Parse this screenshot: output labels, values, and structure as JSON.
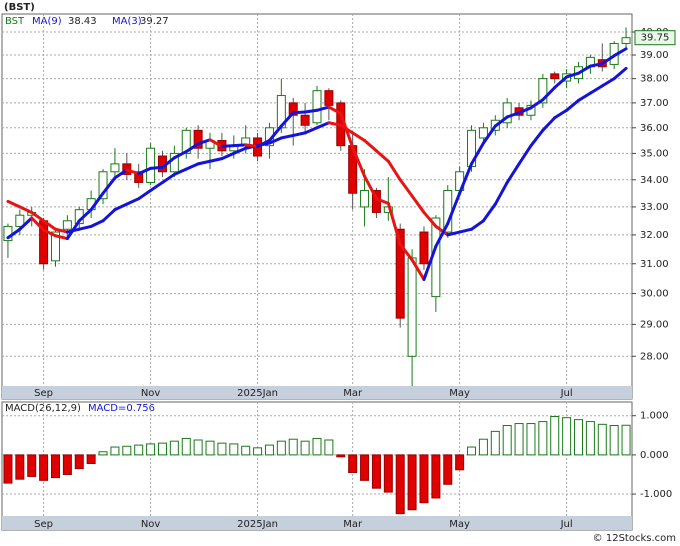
{
  "chart_data": [
    {
      "type": "candlestick",
      "title": "(BST)",
      "symbol": "BST",
      "categories": [
        null,
        null,
        null,
        null,
        null,
        null,
        null,
        null,
        null,
        null,
        null,
        null,
        null,
        null,
        null,
        null,
        null,
        null,
        null,
        null,
        null,
        null,
        null,
        null,
        null,
        null,
        null,
        null,
        null,
        null,
        null,
        null,
        null,
        null,
        null,
        null,
        null,
        null,
        null,
        null,
        null,
        null,
        null,
        null,
        null,
        null,
        null,
        null,
        null,
        null,
        null,
        null,
        null
      ],
      "open": [
        31.8,
        32.3,
        32.7,
        32.5,
        31.1,
        32.2,
        32.4,
        32.9,
        33.3,
        34.3,
        34.6,
        34.3,
        33.9,
        34.9,
        34.3,
        35.0,
        35.9,
        35.2,
        35.5,
        35.1,
        35.3,
        35.6,
        35.3,
        36.0,
        37.0,
        36.5,
        36.2,
        37.5,
        37.0,
        35.3,
        33.0,
        33.6,
        32.8,
        32.2,
        28.0,
        32.1,
        29.9,
        32.1,
        33.6,
        34.5,
        35.6,
        35.9,
        36.2,
        36.8,
        36.5,
        37.0,
        38.2,
        37.9,
        38.0,
        38.5,
        38.8,
        38.6,
        39.5
      ],
      "high": [
        32.4,
        32.9,
        33.0,
        32.6,
        32.2,
        32.7,
        33.0,
        33.6,
        34.4,
        35.2,
        35.0,
        34.6,
        35.4,
        35.1,
        35.3,
        36.0,
        36.1,
        35.8,
        35.8,
        35.7,
        36.1,
        35.8,
        36.2,
        38.0,
        37.2,
        37.0,
        37.7,
        37.6,
        37.1,
        35.8,
        34.4,
        33.7,
        34.1,
        32.4,
        31.5,
        32.3,
        32.7,
        33.8,
        34.5,
        36.1,
        36.2,
        36.5,
        37.2,
        37.0,
        37.1,
        38.2,
        38.3,
        38.4,
        38.7,
        39.0,
        39.5,
        39.6,
        40.2
      ],
      "low": [
        31.2,
        32.0,
        32.3,
        30.8,
        30.9,
        31.9,
        32.2,
        32.6,
        33.1,
        34.0,
        34.0,
        33.7,
        33.8,
        34.1,
        34.1,
        34.8,
        34.8,
        34.4,
        34.9,
        34.8,
        35.0,
        34.7,
        34.8,
        35.8,
        35.3,
        35.8,
        36.1,
        36.3,
        35.1,
        32.9,
        32.3,
        32.6,
        32.5,
        28.9,
        27.1,
        30.8,
        29.4,
        31.9,
        33.4,
        34.3,
        35.4,
        35.7,
        36.0,
        36.3,
        36.3,
        36.8,
        37.8,
        37.6,
        37.8,
        38.2,
        38.3,
        38.4,
        39.3
      ],
      "close": [
        32.3,
        32.7,
        32.8,
        31.0,
        32.1,
        32.5,
        32.9,
        33.3,
        34.3,
        34.6,
        34.2,
        33.9,
        35.2,
        34.3,
        35.0,
        35.9,
        35.2,
        35.5,
        35.1,
        35.3,
        35.6,
        34.9,
        36.0,
        37.3,
        36.5,
        36.1,
        37.5,
        36.9,
        35.3,
        33.5,
        33.6,
        32.8,
        33.0,
        29.2,
        31.2,
        31.0,
        32.6,
        33.6,
        34.3,
        35.9,
        36.0,
        36.3,
        37.0,
        36.5,
        36.9,
        38.0,
        38.0,
        38.2,
        38.5,
        38.9,
        38.5,
        39.5,
        39.75
      ],
      "up_color": "#1a7a1a",
      "down_color": "#e00000",
      "series": [
        {
          "name": "MA(9)",
          "legend_value": 38.43,
          "values": [
            33.2,
            33.0,
            32.8,
            32.5,
            32.2,
            32.1,
            32.2,
            32.3,
            32.5,
            32.9,
            33.1,
            33.3,
            33.6,
            33.9,
            34.2,
            34.4,
            34.6,
            34.7,
            34.8,
            35.0,
            35.2,
            35.3,
            35.4,
            35.6,
            35.7,
            35.8,
            36.0,
            36.2,
            36.1,
            35.8,
            35.5,
            35.1,
            34.7,
            34.0,
            33.4,
            32.8,
            32.3,
            32.0,
            32.1,
            32.2,
            32.5,
            33.1,
            33.9,
            34.6,
            35.3,
            35.9,
            36.4,
            36.7,
            37.1,
            37.4,
            37.7,
            38.0,
            38.43
          ]
        },
        {
          "name": "MA(3)",
          "legend_value": 39.27,
          "values": [
            31.9,
            32.2,
            32.6,
            32.17,
            31.97,
            31.87,
            32.5,
            32.9,
            33.5,
            34.07,
            34.37,
            34.23,
            34.43,
            34.47,
            34.83,
            35.07,
            35.37,
            35.53,
            35.27,
            35.3,
            35.33,
            35.27,
            35.5,
            36.07,
            36.6,
            36.63,
            36.7,
            36.83,
            36.57,
            35.23,
            34.13,
            33.3,
            33.13,
            31.67,
            31.13,
            30.47,
            31.6,
            32.4,
            33.5,
            34.6,
            35.4,
            36.07,
            36.43,
            36.6,
            36.8,
            37.13,
            37.63,
            38.07,
            38.23,
            38.53,
            38.63,
            38.97,
            39.27
          ]
        }
      ],
      "line_up_color": "#1414d8",
      "line_down_color": "#e81414",
      "ylim": [
        27.1,
        40.8
      ],
      "log_scale": true,
      "yticks": [
        {
          "value": 28,
          "label": "28.00"
        },
        {
          "value": 29,
          "label": "29.00"
        },
        {
          "value": 30,
          "label": "30.00"
        },
        {
          "value": 31,
          "label": "31.00"
        },
        {
          "value": 32,
          "label": "32.00"
        },
        {
          "value": 33,
          "label": "33.00"
        },
        {
          "value": 34,
          "label": "34.00"
        },
        {
          "value": 35,
          "label": "35.00"
        },
        {
          "value": 36,
          "label": "36.00"
        },
        {
          "value": 37,
          "label": "37.00"
        },
        {
          "value": 38,
          "label": "38.00"
        },
        {
          "value": 39,
          "label": "39.00"
        },
        {
          "value": 40,
          "label": "40.00"
        }
      ],
      "xticks": [
        {
          "value": 3,
          "label": "Sep"
        },
        {
          "value": 12,
          "label": "Nov"
        },
        {
          "value": 21,
          "label": "2025Jan"
        },
        {
          "value": 29,
          "label": "Mar"
        },
        {
          "value": 38,
          "label": "May"
        },
        {
          "value": 47,
          "label": "Jul"
        }
      ],
      "grid": true
    },
    {
      "type": "bar",
      "legend": [
        "MACD(26,12,9)",
        "MACD=0.756"
      ],
      "values": [
        -0.72,
        -0.62,
        -0.55,
        -0.65,
        -0.58,
        -0.5,
        -0.35,
        -0.22,
        0.08,
        0.2,
        0.22,
        0.25,
        0.28,
        0.3,
        0.35,
        0.42,
        0.38,
        0.35,
        0.3,
        0.28,
        0.22,
        0.18,
        0.25,
        0.35,
        0.4,
        0.35,
        0.42,
        0.38,
        -0.05,
        -0.45,
        -0.65,
        -0.85,
        -0.95,
        -1.5,
        -1.4,
        -1.22,
        -1.1,
        -0.75,
        -0.38,
        0.2,
        0.4,
        0.6,
        0.75,
        0.8,
        0.8,
        0.85,
        0.98,
        0.95,
        0.9,
        0.85,
        0.78,
        0.75,
        0.756
      ],
      "up_color": "#1a7a1a",
      "down_color": "#e00000",
      "ylim": [
        -1.56,
        1.35
      ],
      "yticks": [
        {
          "value": -1,
          "label": "-1.000"
        },
        {
          "value": 0,
          "label": "0.000"
        },
        {
          "value": 1,
          "label": "1.000"
        }
      ],
      "grid": true
    }
  ],
  "footer": "© 12Stocks.com"
}
